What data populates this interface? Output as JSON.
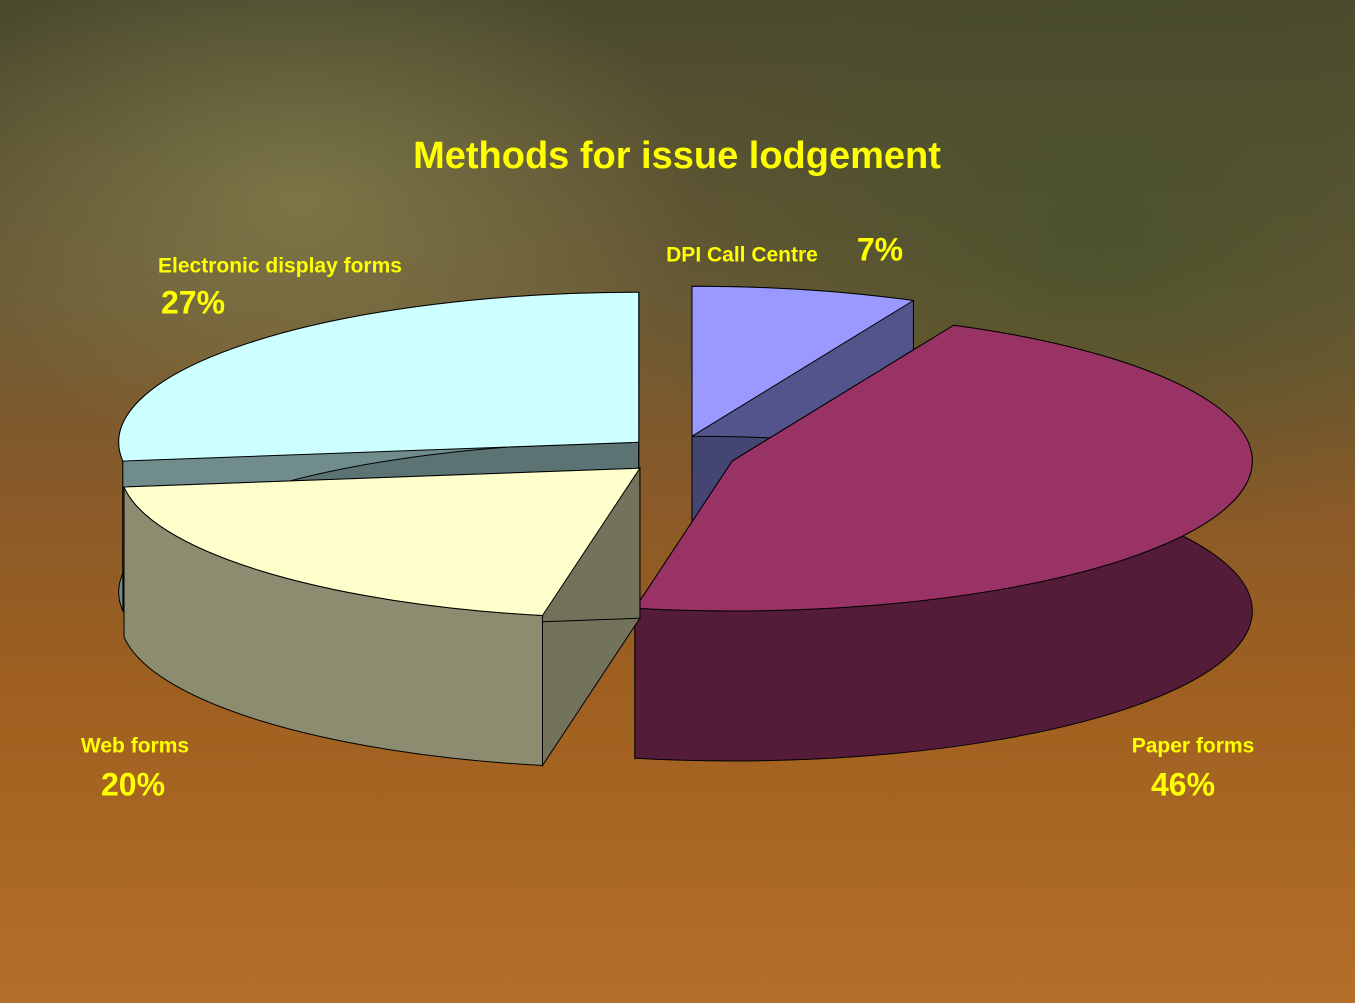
{
  "chart_data": {
    "type": "pie3d",
    "title": "Methods for issue lodgement",
    "categories": [
      "DPI Call Centre",
      "Paper forms",
      "Web forms",
      "Electronic display forms"
    ],
    "values": [
      7,
      46,
      20,
      27
    ],
    "value_labels": [
      "7%",
      "46%",
      "20%",
      "27%"
    ],
    "colors": [
      "#9999ff",
      "#993366",
      "#ffffcc",
      "#ccffff"
    ]
  }
}
